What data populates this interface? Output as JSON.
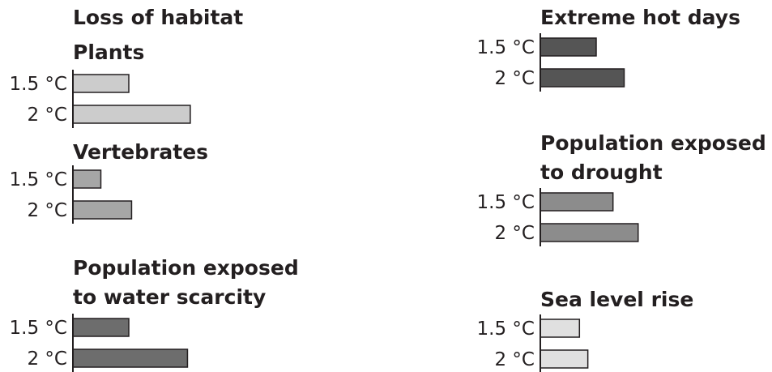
{
  "chart_data": [
    {
      "type": "bar",
      "orientation": "horizontal",
      "headings": [
        "Loss of habitat",
        "Plants"
      ],
      "categories": [
        "1.5 °C",
        "2 °C"
      ],
      "values": [
        1.0,
        2.1
      ],
      "color": "#cccccc"
    },
    {
      "type": "bar",
      "orientation": "horizontal",
      "headings": [
        "Vertebrates"
      ],
      "categories": [
        "1.5 °C",
        "2 °C"
      ],
      "values": [
        0.5,
        1.05
      ],
      "color": "#a6a6a6"
    },
    {
      "type": "bar",
      "orientation": "horizontal",
      "headings": [
        "Population exposed",
        "to water scarcity"
      ],
      "categories": [
        "1.5 °C",
        "2 °C"
      ],
      "values": [
        1.0,
        2.05
      ],
      "color": "#6d6d6d"
    },
    {
      "type": "bar",
      "orientation": "horizontal",
      "headings": [
        "Extreme hot days"
      ],
      "categories": [
        "1.5 °C",
        "2 °C"
      ],
      "values": [
        1.0,
        1.5
      ],
      "color": "#555555"
    },
    {
      "type": "bar",
      "orientation": "horizontal",
      "headings": [
        "Population exposed",
        "to drought"
      ],
      "categories": [
        "1.5 °C",
        "2 °C"
      ],
      "values": [
        1.3,
        1.75
      ],
      "color": "#8c8c8c"
    },
    {
      "type": "bar",
      "orientation": "horizontal",
      "headings": [
        "Sea level rise"
      ],
      "categories": [
        "1.5 °C",
        "2 °C"
      ],
      "values": [
        0.7,
        0.85
      ],
      "color": "#e0e0e0"
    }
  ]
}
